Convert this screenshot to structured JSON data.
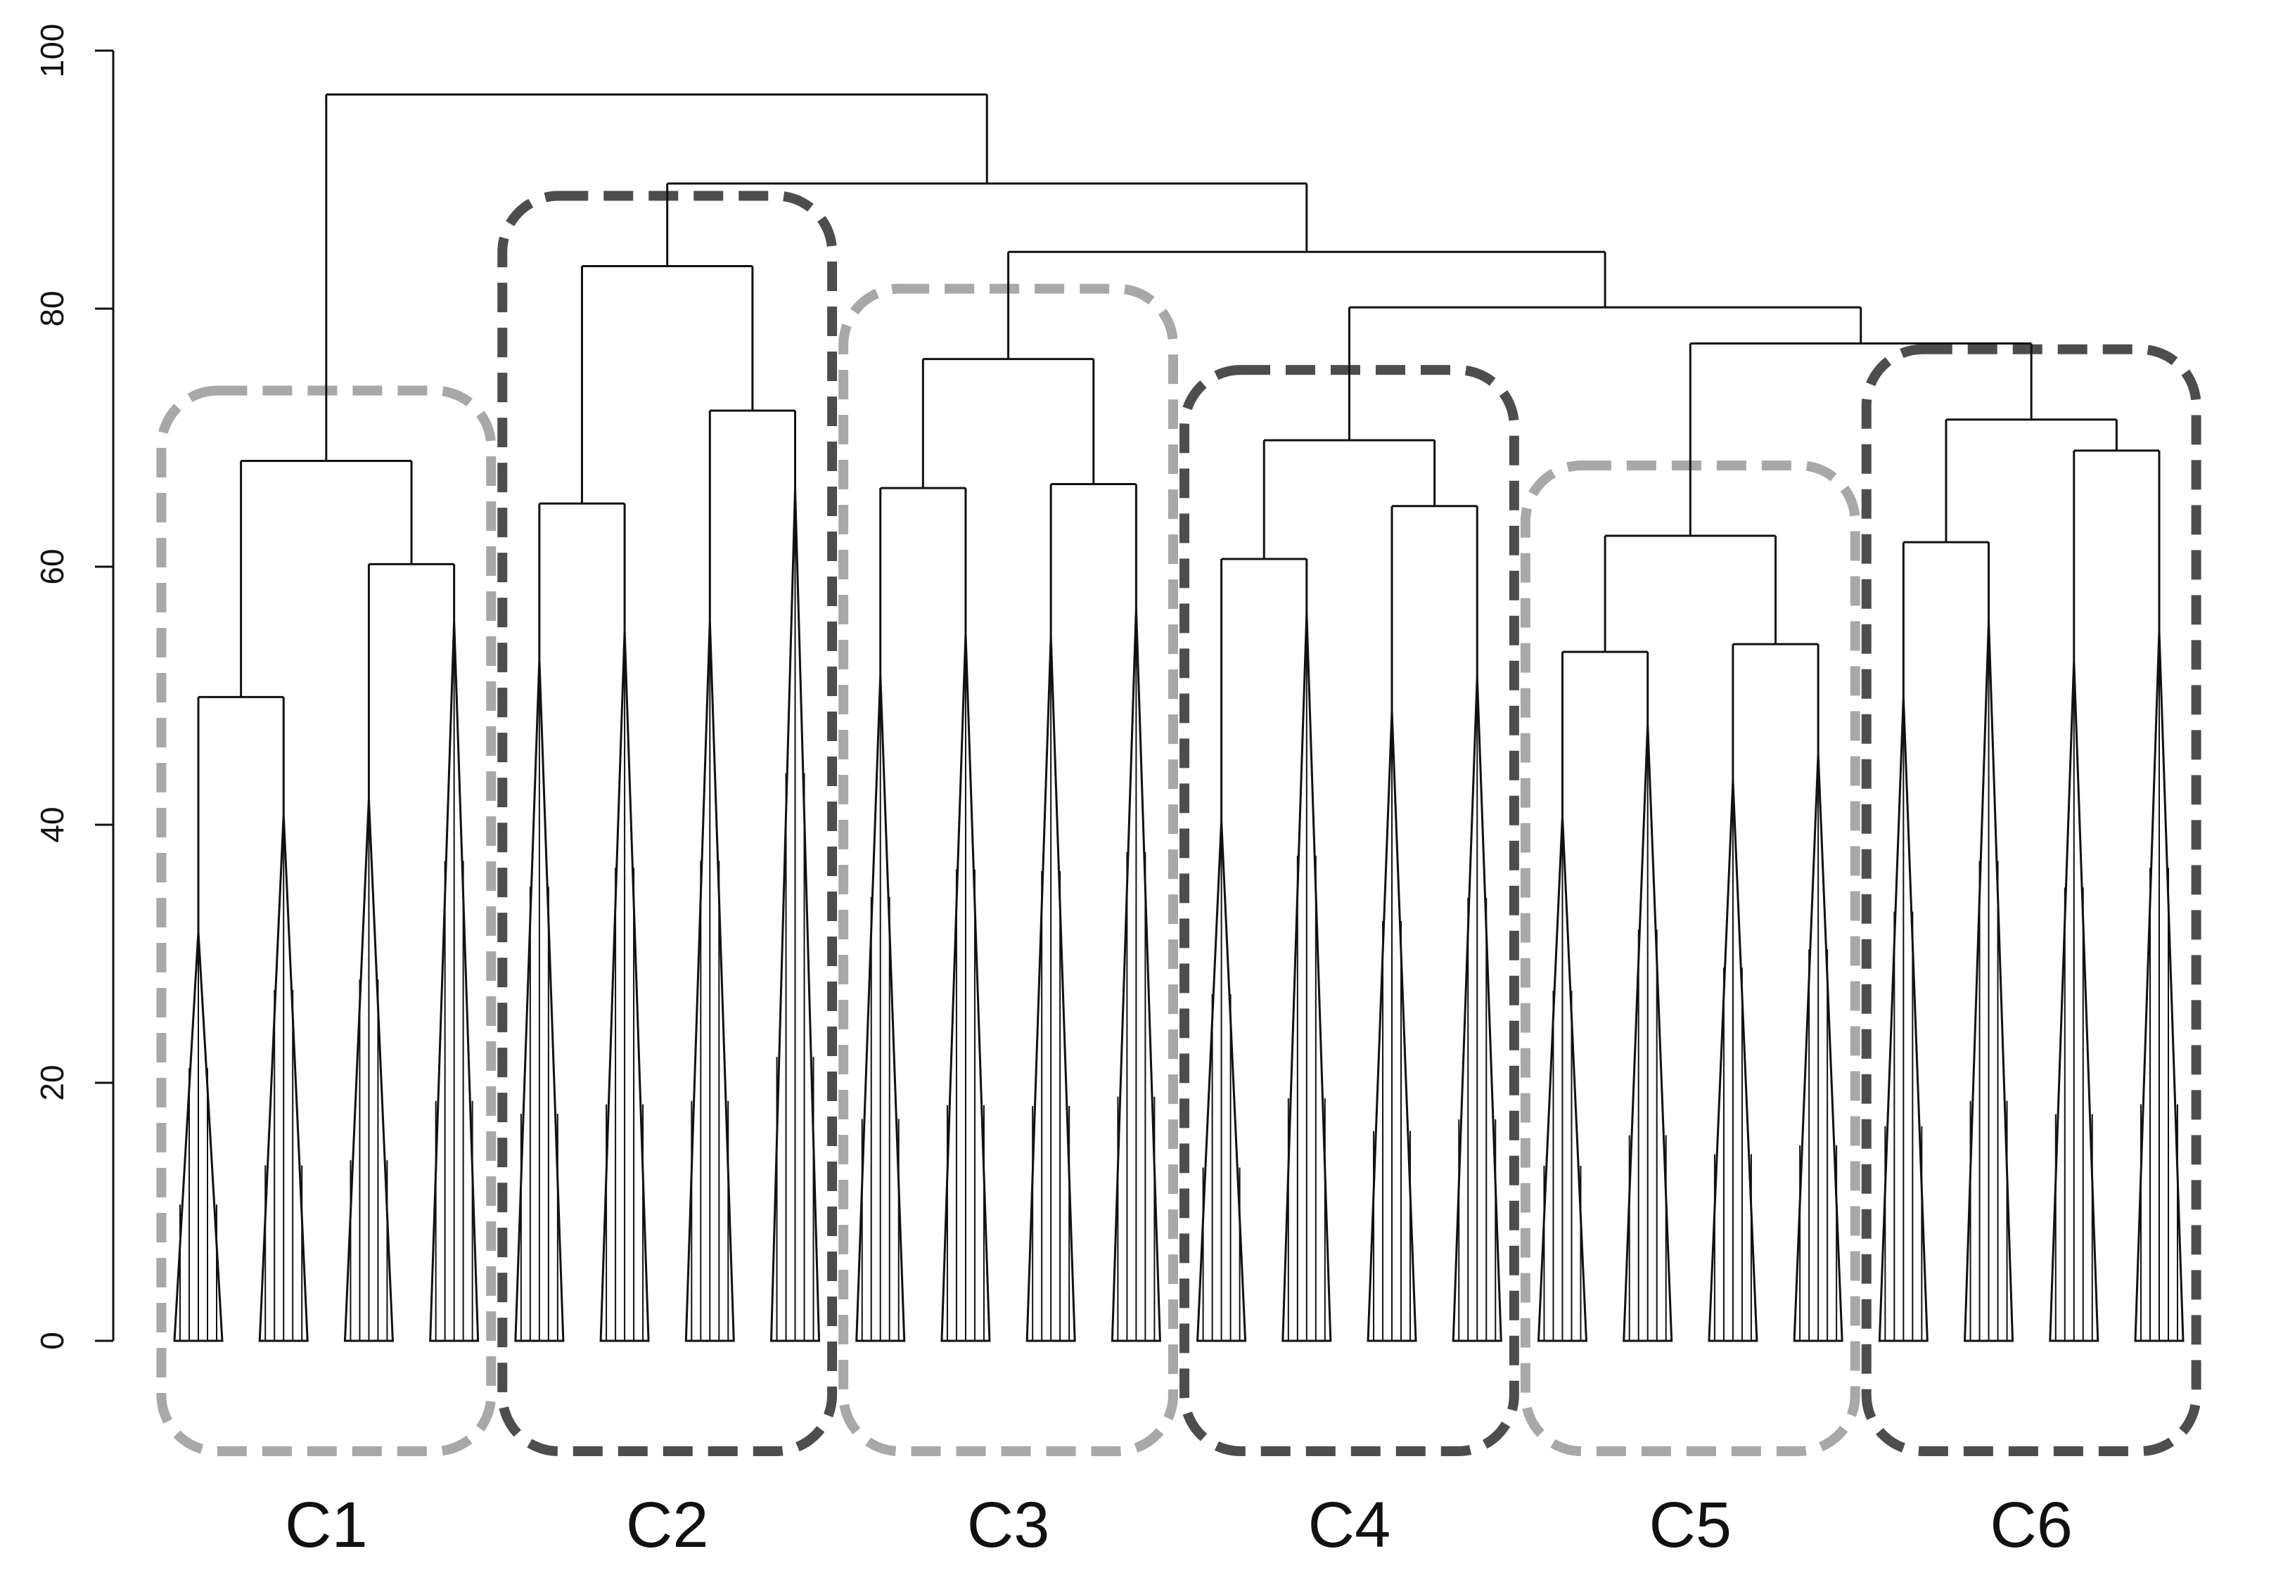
{
  "chart_data": {
    "type": "dendrogram",
    "ylim": [
      0,
      100
    ],
    "yticks": [
      0,
      20,
      40,
      60,
      80,
      100
    ],
    "line_color": "#111111",
    "tree": {
      "height": 96.6,
      "children": [
        {
          "height": 68.2,
          "label": "C1",
          "color": "#a8a8a8",
          "children": [
            {
              "height": 49.9,
              "children": [
                {
                  "height": 31.7
                },
                {
                  "height": 40.8
                }
              ]
            },
            {
              "height": 60.2,
              "children": [
                {
                  "height": 42.0
                },
                {
                  "height": 55.8
                }
              ]
            }
          ]
        },
        {
          "height": 89.7,
          "children": [
            {
              "height": 83.3,
              "label": "C2",
              "color": "#4d4d4d",
              "children": [
                {
                  "height": 64.9,
                  "children": [
                    {
                      "height": 52.8
                    },
                    {
                      "height": 55.0
                    }
                  ]
                },
                {
                  "height": 72.1,
                  "children": [
                    {
                      "height": 55.8
                    },
                    {
                      "height": 66.0
                    }
                  ]
                }
              ]
            },
            {
              "height": 84.4,
              "children": [
                {
                  "height": 76.1,
                  "label": "C3",
                  "color": "#a8a8a8",
                  "children": [
                    {
                      "height": 66.1,
                      "children": [
                        {
                          "height": 51.6
                        },
                        {
                          "height": 54.8
                        }
                      ]
                    },
                    {
                      "height": 66.4,
                      "children": [
                        {
                          "height": 54.6
                        },
                        {
                          "height": 56.8
                        }
                      ]
                    }
                  ]
                },
                {
                  "height": 80.1,
                  "children": [
                    {
                      "height": 69.8,
                      "label": "C4",
                      "color": "#4d4d4d",
                      "children": [
                        {
                          "height": 60.6,
                          "children": [
                            {
                              "height": 40.3
                            },
                            {
                              "height": 56.4
                            }
                          ]
                        },
                        {
                          "height": 64.7,
                          "children": [
                            {
                              "height": 48.8
                            },
                            {
                              "height": 51.5
                            }
                          ]
                        }
                      ]
                    },
                    {
                      "height": 77.3,
                      "children": [
                        {
                          "height": 62.4,
                          "label": "C5",
                          "color": "#a8a8a8",
                          "children": [
                            {
                              "height": 53.4,
                              "children": [
                                {
                                  "height": 40.7
                                },
                                {
                                  "height": 47.8
                                }
                              ]
                            },
                            {
                              "height": 54.0,
                              "children": [
                                {
                                  "height": 43.4
                                },
                                {
                                  "height": 45.5
                                }
                              ]
                            }
                          ]
                        },
                        {
                          "height": 71.4,
                          "label": "C6",
                          "color": "#4d4d4d",
                          "children": [
                            {
                              "height": 61.9,
                              "children": [
                                {
                                  "height": 49.9
                                },
                                {
                                  "height": 55.8
                                }
                              ]
                            },
                            {
                              "height": 69.0,
                              "children": [
                                {
                                  "height": 52.7
                                },
                                {
                                  "height": 55.0
                                }
                              ]
                            }
                          ]
                        }
                      ]
                    }
                  ]
                }
              ]
            }
          ]
        }
      ]
    }
  }
}
